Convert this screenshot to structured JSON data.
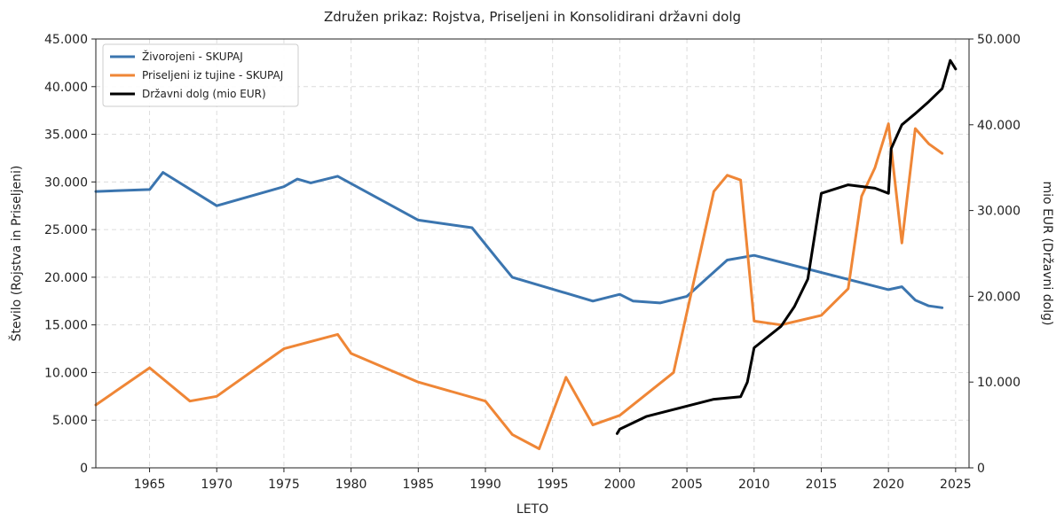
{
  "chart_data": {
    "type": "line",
    "title": "Združen prikaz: Rojstva, Priseljeni in Konsolidirani državni dolg",
    "xlabel": "LETO",
    "ylabel_left": "Število (Rojstva in Priseljeni)",
    "ylabel_right": "mio EUR (Državni dolg)",
    "xlim": [
      1961,
      2026
    ],
    "ylim_left": [
      0,
      45000
    ],
    "ylim_right": [
      0,
      50000
    ],
    "x_ticks": [
      1965,
      1970,
      1975,
      1980,
      1985,
      1990,
      1995,
      2000,
      2005,
      2010,
      2015,
      2020,
      2025
    ],
    "x_tick_labels": [
      "1965",
      "1970",
      "1975",
      "1980",
      "1985",
      "1990",
      "1995",
      "2000",
      "2005",
      "2010",
      "2015",
      "2020",
      "2025"
    ],
    "y_left_ticks": [
      0,
      5000,
      10000,
      15000,
      20000,
      25000,
      30000,
      35000,
      40000,
      45000
    ],
    "y_left_tick_labels": [
      "0",
      "5.000",
      "10.000",
      "15.000",
      "20.000",
      "25.000",
      "30.000",
      "35.000",
      "40.000",
      "45.000"
    ],
    "y_right_ticks": [
      0,
      10000,
      20000,
      30000,
      40000,
      50000
    ],
    "y_right_tick_labels": [
      "0",
      "10.000",
      "20.000",
      "30.000",
      "40.000",
      "50.000"
    ],
    "grid": true,
    "legend_position": "top-left",
    "series": [
      {
        "name": "Živorojeni - SKUPAJ",
        "axis": "left",
        "color": "#3b75af",
        "x": [
          1961,
          1965,
          1966,
          1970,
          1975,
          1976,
          1977,
          1979,
          1985,
          1989,
          1991,
          1992,
          1998,
          2000,
          2001,
          2003,
          2005,
          2008,
          2010,
          2020,
          2021,
          2022,
          2023,
          2024
        ],
        "y": [
          29000,
          29200,
          31000,
          27500,
          29500,
          30300,
          29900,
          30600,
          26000,
          25200,
          21700,
          20000,
          17500,
          18200,
          17500,
          17300,
          18000,
          21800,
          22300,
          18700,
          19000,
          17600,
          17000,
          16800
        ]
      },
      {
        "name": "Priseljeni iz tujine - SKUPAJ",
        "axis": "left",
        "color": "#ef8636",
        "x": [
          1961,
          1965,
          1968,
          1970,
          1975,
          1979,
          1980,
          1985,
          1990,
          1992,
          1994,
          1996,
          1998,
          2000,
          2004,
          2007,
          2008,
          2009,
          2010,
          2012,
          2015,
          2017,
          2018,
          2019,
          2020,
          2021,
          2022,
          2023,
          2024
        ],
        "y": [
          6600,
          10500,
          7000,
          7500,
          12500,
          14000,
          12000,
          9000,
          7000,
          3500,
          2000,
          9500,
          4500,
          5500,
          10000,
          29000,
          30700,
          30200,
          15400,
          15000,
          16000,
          18800,
          28500,
          31500,
          36100,
          23600,
          35600,
          34000,
          33000
        ]
      },
      {
        "name": "Državni dolg (mio EUR)",
        "axis": "right",
        "color": "#000000",
        "x": [
          1999.8,
          2000,
          2002,
          2004,
          2005,
          2007,
          2009,
          2009.5,
          2010,
          2012,
          2013,
          2014,
          2015,
          2017,
          2019,
          2020,
          2020.2,
          2021,
          2022,
          2023,
          2024,
          2024.6,
          2025
        ],
        "y": [
          4000,
          4500,
          6000,
          6800,
          7200,
          8000,
          8300,
          10000,
          14000,
          16500,
          18800,
          22000,
          32000,
          33000,
          32600,
          32000,
          37200,
          40000,
          41300,
          42700,
          44200,
          47500,
          46500
        ]
      }
    ]
  }
}
